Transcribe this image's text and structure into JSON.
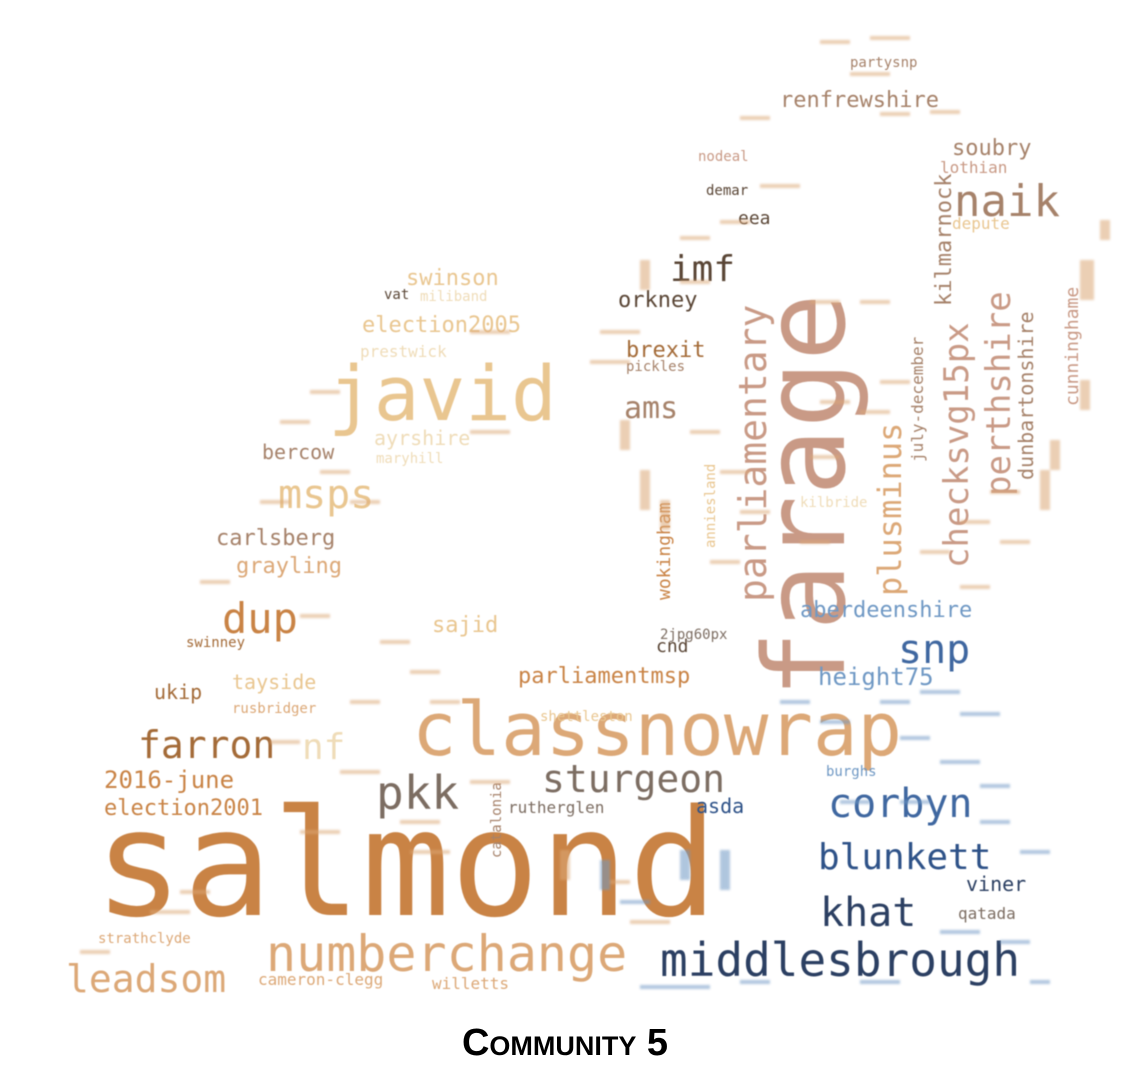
{
  "caption": "Community 5",
  "palette": {
    "brown": "#c98345",
    "tan": "#dca877",
    "sand": "#e9c690",
    "pale": "#efdcb8",
    "rose": "#c99a86",
    "taupe": "#a6826a",
    "dark": "#5a4636",
    "gray": "#7c6d62",
    "blue": "#2e5288",
    "light_blue": "#6f98c4"
  },
  "words": [
    {
      "text": "salmond"
    },
    {
      "text": "farage"
    },
    {
      "text": "classnowrap"
    },
    {
      "text": "javid"
    },
    {
      "text": "numberchange"
    },
    {
      "text": "middlesbrough"
    },
    {
      "text": "sturgeon"
    },
    {
      "text": "corbyn"
    },
    {
      "text": "parliamentary"
    },
    {
      "text": "blunkett"
    },
    {
      "text": "khat"
    },
    {
      "text": "pkk"
    },
    {
      "text": "naik"
    },
    {
      "text": "snp"
    },
    {
      "text": "checksvg15px"
    },
    {
      "text": "perthshire"
    },
    {
      "text": "plusminus"
    },
    {
      "text": "msps"
    },
    {
      "text": "dup"
    },
    {
      "text": "farron"
    },
    {
      "text": "leadsom"
    },
    {
      "text": "imf"
    },
    {
      "text": "ams"
    },
    {
      "text": "nf"
    },
    {
      "text": "kilmarnock"
    },
    {
      "text": "dunbartonshire"
    },
    {
      "text": "cunninghame"
    },
    {
      "text": "wokingham"
    },
    {
      "text": "renfrewshire"
    },
    {
      "text": "election2005"
    },
    {
      "text": "aberdeenshire"
    },
    {
      "text": "height75"
    },
    {
      "text": "2016-june"
    },
    {
      "text": "election2001"
    },
    {
      "text": "parliamentmsp"
    },
    {
      "text": "swinson"
    },
    {
      "text": "brexit"
    },
    {
      "text": "orkney"
    },
    {
      "text": "soubry"
    },
    {
      "text": "carlsberg"
    },
    {
      "text": "grayling"
    },
    {
      "text": "bercow"
    },
    {
      "text": "ayrshire"
    },
    {
      "text": "sajid"
    },
    {
      "text": "tayside"
    },
    {
      "text": "ukip"
    },
    {
      "text": "asda"
    },
    {
      "text": "viner"
    },
    {
      "text": "cnd"
    },
    {
      "text": "rutherglen"
    },
    {
      "text": "qatada"
    },
    {
      "text": "burghs"
    },
    {
      "text": "july-december"
    },
    {
      "text": "cameron-clegg"
    },
    {
      "text": "willetts"
    },
    {
      "text": "strathclyde"
    },
    {
      "text": "prestwick"
    },
    {
      "text": "lothian"
    },
    {
      "text": "eea"
    },
    {
      "text": "partysnp"
    },
    {
      "text": "shettleston"
    },
    {
      "text": "rusbridger"
    },
    {
      "text": "catalonia"
    },
    {
      "text": "depute"
    },
    {
      "text": "pickles"
    },
    {
      "text": "maryhill"
    },
    {
      "text": "vat"
    },
    {
      "text": "miliband"
    },
    {
      "text": "2jpg60px"
    },
    {
      "text": "kilbride"
    },
    {
      "text": "nodeal"
    },
    {
      "text": "demar"
    },
    {
      "text": "swinney"
    },
    {
      "text": "anniesland"
    }
  ]
}
